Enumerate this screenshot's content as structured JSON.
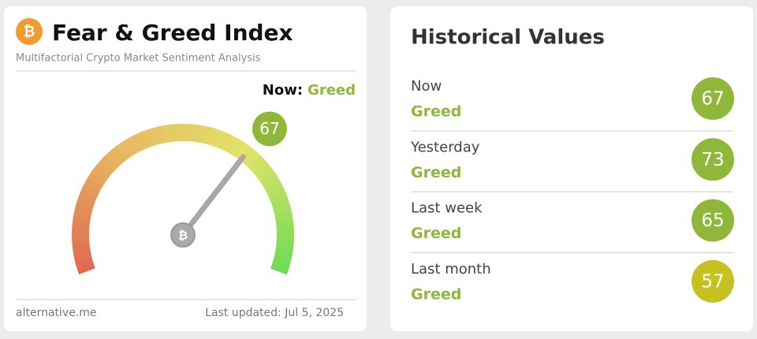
{
  "header": {
    "title": "Fear & Greed Index",
    "subtitle": "Multifactorial Crypto Market Sentiment Analysis"
  },
  "now": {
    "label": "Now:",
    "classification": "Greed"
  },
  "gauge": {
    "value": 67,
    "color": "#8fb83a"
  },
  "footer": {
    "source": "alternative.me",
    "updated": "Last updated: Jul 5, 2025"
  },
  "historical": {
    "title": "Historical Values",
    "rows": [
      {
        "label": "Now",
        "classification": "Greed",
        "value": 67,
        "color": "#8fb83a"
      },
      {
        "label": "Yesterday",
        "classification": "Greed",
        "value": 73,
        "color": "#8fb83a"
      },
      {
        "label": "Last week",
        "classification": "Greed",
        "value": 65,
        "color": "#8fb83a"
      },
      {
        "label": "Last month",
        "classification": "Greed",
        "value": 57,
        "color": "#c6c11f"
      }
    ]
  }
}
